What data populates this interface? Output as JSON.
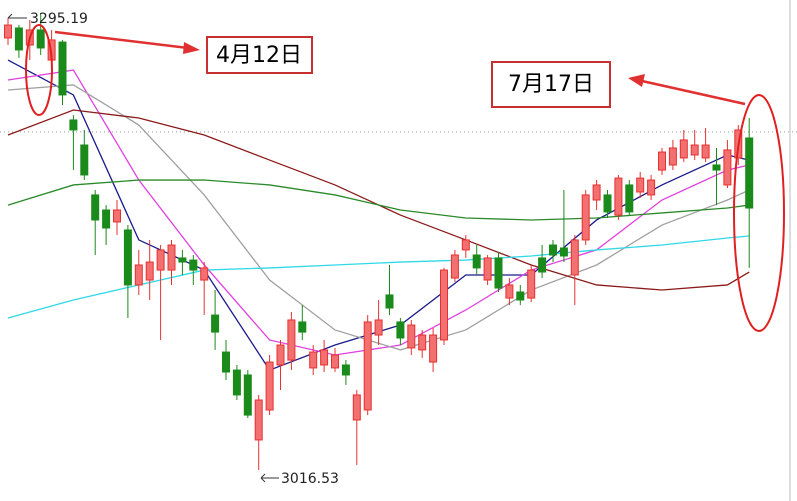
{
  "chart_data": {
    "type": "candlestick",
    "ylim": [
      2997.6,
      3303.7
    ],
    "up_color": "#e83030",
    "up_fill": "#f27070",
    "down_color": "#1a8a1a",
    "ref_line": 3223.1,
    "ohlc": [
      [
        3280.5,
        3292.7,
        3276.2,
        3288.4
      ],
      [
        3286.6,
        3288.4,
        3268.3,
        3273.2
      ],
      [
        3276.2,
        3291.5,
        3267.0,
        3285.4
      ],
      [
        3285.4,
        3295.19,
        3270.1,
        3274.4
      ],
      [
        3267.0,
        3285.4,
        3260.9,
        3279.3
      ],
      [
        3278.0,
        3279.3,
        3239.5,
        3245.7
      ],
      [
        3230.4,
        3233.4,
        3199.8,
        3224.3
      ],
      [
        3215.1,
        3224.3,
        3193.7,
        3196.8
      ],
      [
        3184.6,
        3187.6,
        3147.9,
        3169.3
      ],
      [
        3175.4,
        3178.4,
        3154.0,
        3164.4
      ],
      [
        3168.1,
        3181.5,
        3160.1,
        3175.4
      ],
      [
        3163.2,
        3166.2,
        3109.4,
        3129.6
      ],
      [
        3129.6,
        3151.0,
        3123.5,
        3141.8
      ],
      [
        3132.6,
        3157.1,
        3120.4,
        3143.6
      ],
      [
        3138.7,
        3154.0,
        3096.0,
        3151.0
      ],
      [
        3138.7,
        3157.1,
        3129.6,
        3154.0
      ],
      [
        3146.1,
        3151.0,
        3135.7,
        3143.6
      ],
      [
        3144.8,
        3147.9,
        3129.6,
        3138.7
      ],
      [
        3132.6,
        3143.6,
        3111.2,
        3140.0
      ],
      [
        3111.2,
        3126.5,
        3089.9,
        3100.8
      ],
      [
        3088.6,
        3096.0,
        3071.5,
        3076.4
      ],
      [
        3077.6,
        3080.7,
        3059.3,
        3062.4
      ],
      [
        3074.6,
        3077.6,
        3048.3,
        3050.1
      ],
      [
        3034.9,
        3062.4,
        3016.53,
        3059.3
      ],
      [
        3053.2,
        3086.8,
        3050.1,
        3082.5
      ],
      [
        3080.7,
        3096.0,
        3065.4,
        3092.9
      ],
      [
        3083.7,
        3113.1,
        3077.6,
        3108.2
      ],
      [
        3107.0,
        3117.3,
        3096.0,
        3100.8
      ],
      [
        3078.9,
        3092.9,
        3074.6,
        3088.6
      ],
      [
        3080.7,
        3096.0,
        3076.4,
        3089.9
      ],
      [
        3078.9,
        3091.1,
        3076.4,
        3086.8
      ],
      [
        3080.7,
        3083.7,
        3068.5,
        3074.6
      ],
      [
        3047.1,
        3065.4,
        3019.6,
        3062.4
      ],
      [
        3053.2,
        3111.2,
        3050.1,
        3107.0
      ],
      [
        3099.0,
        3120.4,
        3092.9,
        3108.2
      ],
      [
        3123.5,
        3141.8,
        3111.2,
        3115.5
      ],
      [
        3107.0,
        3109.4,
        3092.9,
        3097.2
      ],
      [
        3091.1,
        3108.2,
        3086.8,
        3105.1
      ],
      [
        3089.9,
        3102.1,
        3085.0,
        3099.0
      ],
      [
        3082.5,
        3103.3,
        3076.4,
        3099.0
      ],
      [
        3096.0,
        3140.0,
        3092.9,
        3138.7
      ],
      [
        3133.8,
        3151.0,
        3131.4,
        3147.9
      ],
      [
        3151.0,
        3160.1,
        3146.1,
        3157.1
      ],
      [
        3147.9,
        3154.0,
        3135.7,
        3140.0
      ],
      [
        3132.6,
        3147.9,
        3129.6,
        3146.1
      ],
      [
        3146.1,
        3149.7,
        3125.3,
        3127.7
      ],
      [
        3121.6,
        3133.8,
        3117.3,
        3129.6
      ],
      [
        3125.3,
        3129.6,
        3117.3,
        3120.4
      ],
      [
        3121.6,
        3141.8,
        3119.2,
        3138.7
      ],
      [
        3146.1,
        3154.0,
        3133.8,
        3137.5
      ],
      [
        3154.0,
        3157.1,
        3143.6,
        3147.9
      ],
      [
        3152.2,
        3187.6,
        3143.6,
        3147.3
      ],
      [
        3135.7,
        3160.1,
        3117.3,
        3157.1
      ],
      [
        3157.1,
        3187.6,
        3154.0,
        3184.6
      ],
      [
        3181.5,
        3193.7,
        3175.4,
        3190.7
      ],
      [
        3184.6,
        3187.6,
        3170.5,
        3174.2
      ],
      [
        3172.3,
        3196.8,
        3169.3,
        3194.9
      ],
      [
        3190.7,
        3193.7,
        3172.3,
        3174.2
      ],
      [
        3186.4,
        3198.6,
        3182.7,
        3194.9
      ],
      [
        3184.6,
        3196.8,
        3181.5,
        3193.7
      ],
      [
        3199.8,
        3213.3,
        3196.8,
        3210.8
      ],
      [
        3202.9,
        3218.2,
        3199.8,
        3213.3
      ],
      [
        3207.2,
        3224.3,
        3204.7,
        3218.2
      ],
      [
        3209.0,
        3224.3,
        3205.9,
        3215.1
      ],
      [
        3207.2,
        3225.5,
        3204.7,
        3215.1
      ],
      [
        3202.9,
        3213.3,
        3178.4,
        3199.8
      ],
      [
        3190.7,
        3218.2,
        3188.8,
        3212.1
      ],
      [
        3207.2,
        3227.3,
        3202.9,
        3224.3
      ],
      [
        3219.4,
        3231.6,
        3140.0,
        3176.6
      ]
    ],
    "line_x": [
      0,
      6,
      12,
      18,
      24,
      30,
      36,
      42,
      48,
      54,
      60,
      66,
      68
    ],
    "lines": [
      {
        "color": "#1a1a8c",
        "values": [
          3267.0,
          3245.7,
          3157.1,
          3138.7,
          3077.6,
          3092.9,
          3105.1,
          3135.7,
          3135.7,
          3169.3,
          3190.7,
          3209.0,
          3205.9
        ]
      },
      {
        "color": "#e040e0",
        "values": [
          3254.8,
          3260.9,
          3193.7,
          3141.8,
          3096.0,
          3086.8,
          3092.9,
          3114.3,
          3138.7,
          3151.0,
          3181.5,
          3199.8,
          3202.9
        ]
      },
      {
        "color": "#a0a0a0",
        "values": [
          3248.7,
          3251.8,
          3227.3,
          3184.6,
          3132.6,
          3102.1,
          3089.9,
          3102.1,
          3126.5,
          3141.8,
          3166.2,
          3181.5,
          3187.6
        ]
      },
      {
        "color": "#8b1a1a",
        "values": [
          3221.2,
          3236.5,
          3231.6,
          3221.2,
          3205.9,
          3190.7,
          3172.3,
          3157.1,
          3141.8,
          3129.6,
          3126.5,
          3129.6,
          3137.5
        ]
      },
      {
        "color": "#2a8a2a",
        "values": [
          3178.4,
          3190.7,
          3193.7,
          3193.7,
          3190.7,
          3184.6,
          3175.4,
          3170.5,
          3169.3,
          3170.5,
          3173.6,
          3176.6,
          3178.4
        ]
      },
      {
        "color": "#30d8e8",
        "values": [
          3109.4,
          3120.4,
          3129.6,
          3138.7,
          3140.0,
          3141.8,
          3143.6,
          3144.8,
          3147.3,
          3151.0,
          3154.0,
          3158.3,
          3159.5
        ]
      }
    ],
    "annotations": [
      "4月12日",
      "7月17日"
    ]
  }
}
